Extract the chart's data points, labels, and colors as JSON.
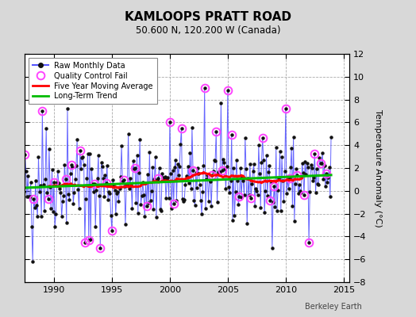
{
  "title": "KAMLOOPS PRATT ROAD",
  "subtitle": "50.600 N, 120.200 W (Canada)",
  "ylabel": "Temperature Anomaly (°C)",
  "watermark": "Berkeley Earth",
  "xlim": [
    1987.5,
    2015.5
  ],
  "ylim": [
    -8,
    12
  ],
  "yticks": [
    -8,
    -6,
    -4,
    -2,
    0,
    2,
    4,
    6,
    8,
    10,
    12
  ],
  "xticks": [
    1990,
    1995,
    2000,
    2005,
    2010,
    2015
  ],
  "background_color": "#d8d8d8",
  "plot_bg_color": "#ffffff",
  "grid_color": "#aaaaaa",
  "raw_line_color": "#5555ff",
  "raw_dot_color": "#111111",
  "moving_avg_color": "#ff0000",
  "trend_color": "#00bb00",
  "qc_fail_color": "#ff44ff",
  "seed": 42,
  "n_months": 324,
  "start_year": 1987.0
}
